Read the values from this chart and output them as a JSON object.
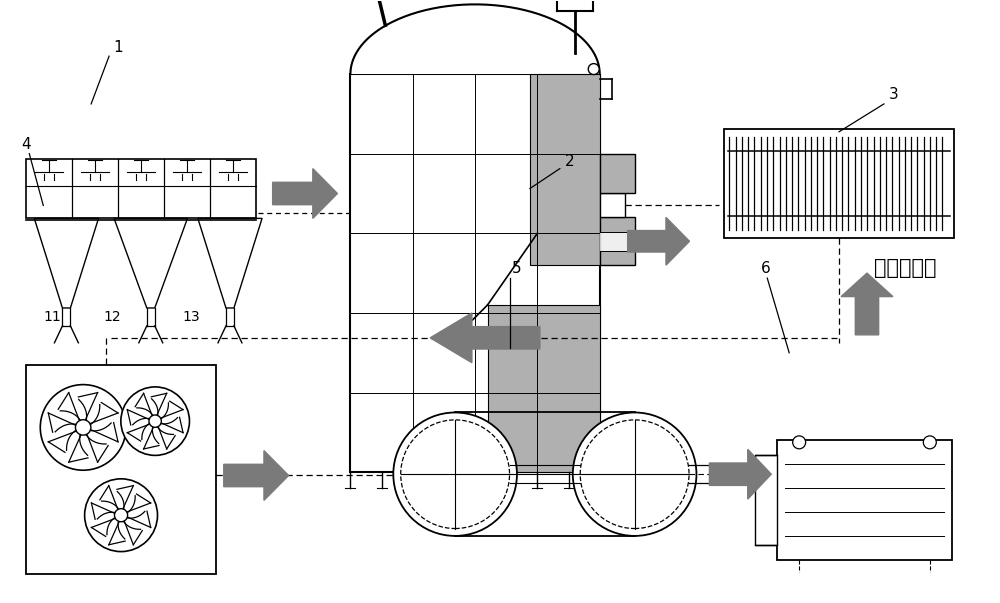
{
  "bg_color": "#ffffff",
  "line_color": "#000000",
  "gray_fill": "#b0b0b0",
  "arrow_color": "#7a7a7a",
  "chinese_text": "矿物棉成品"
}
